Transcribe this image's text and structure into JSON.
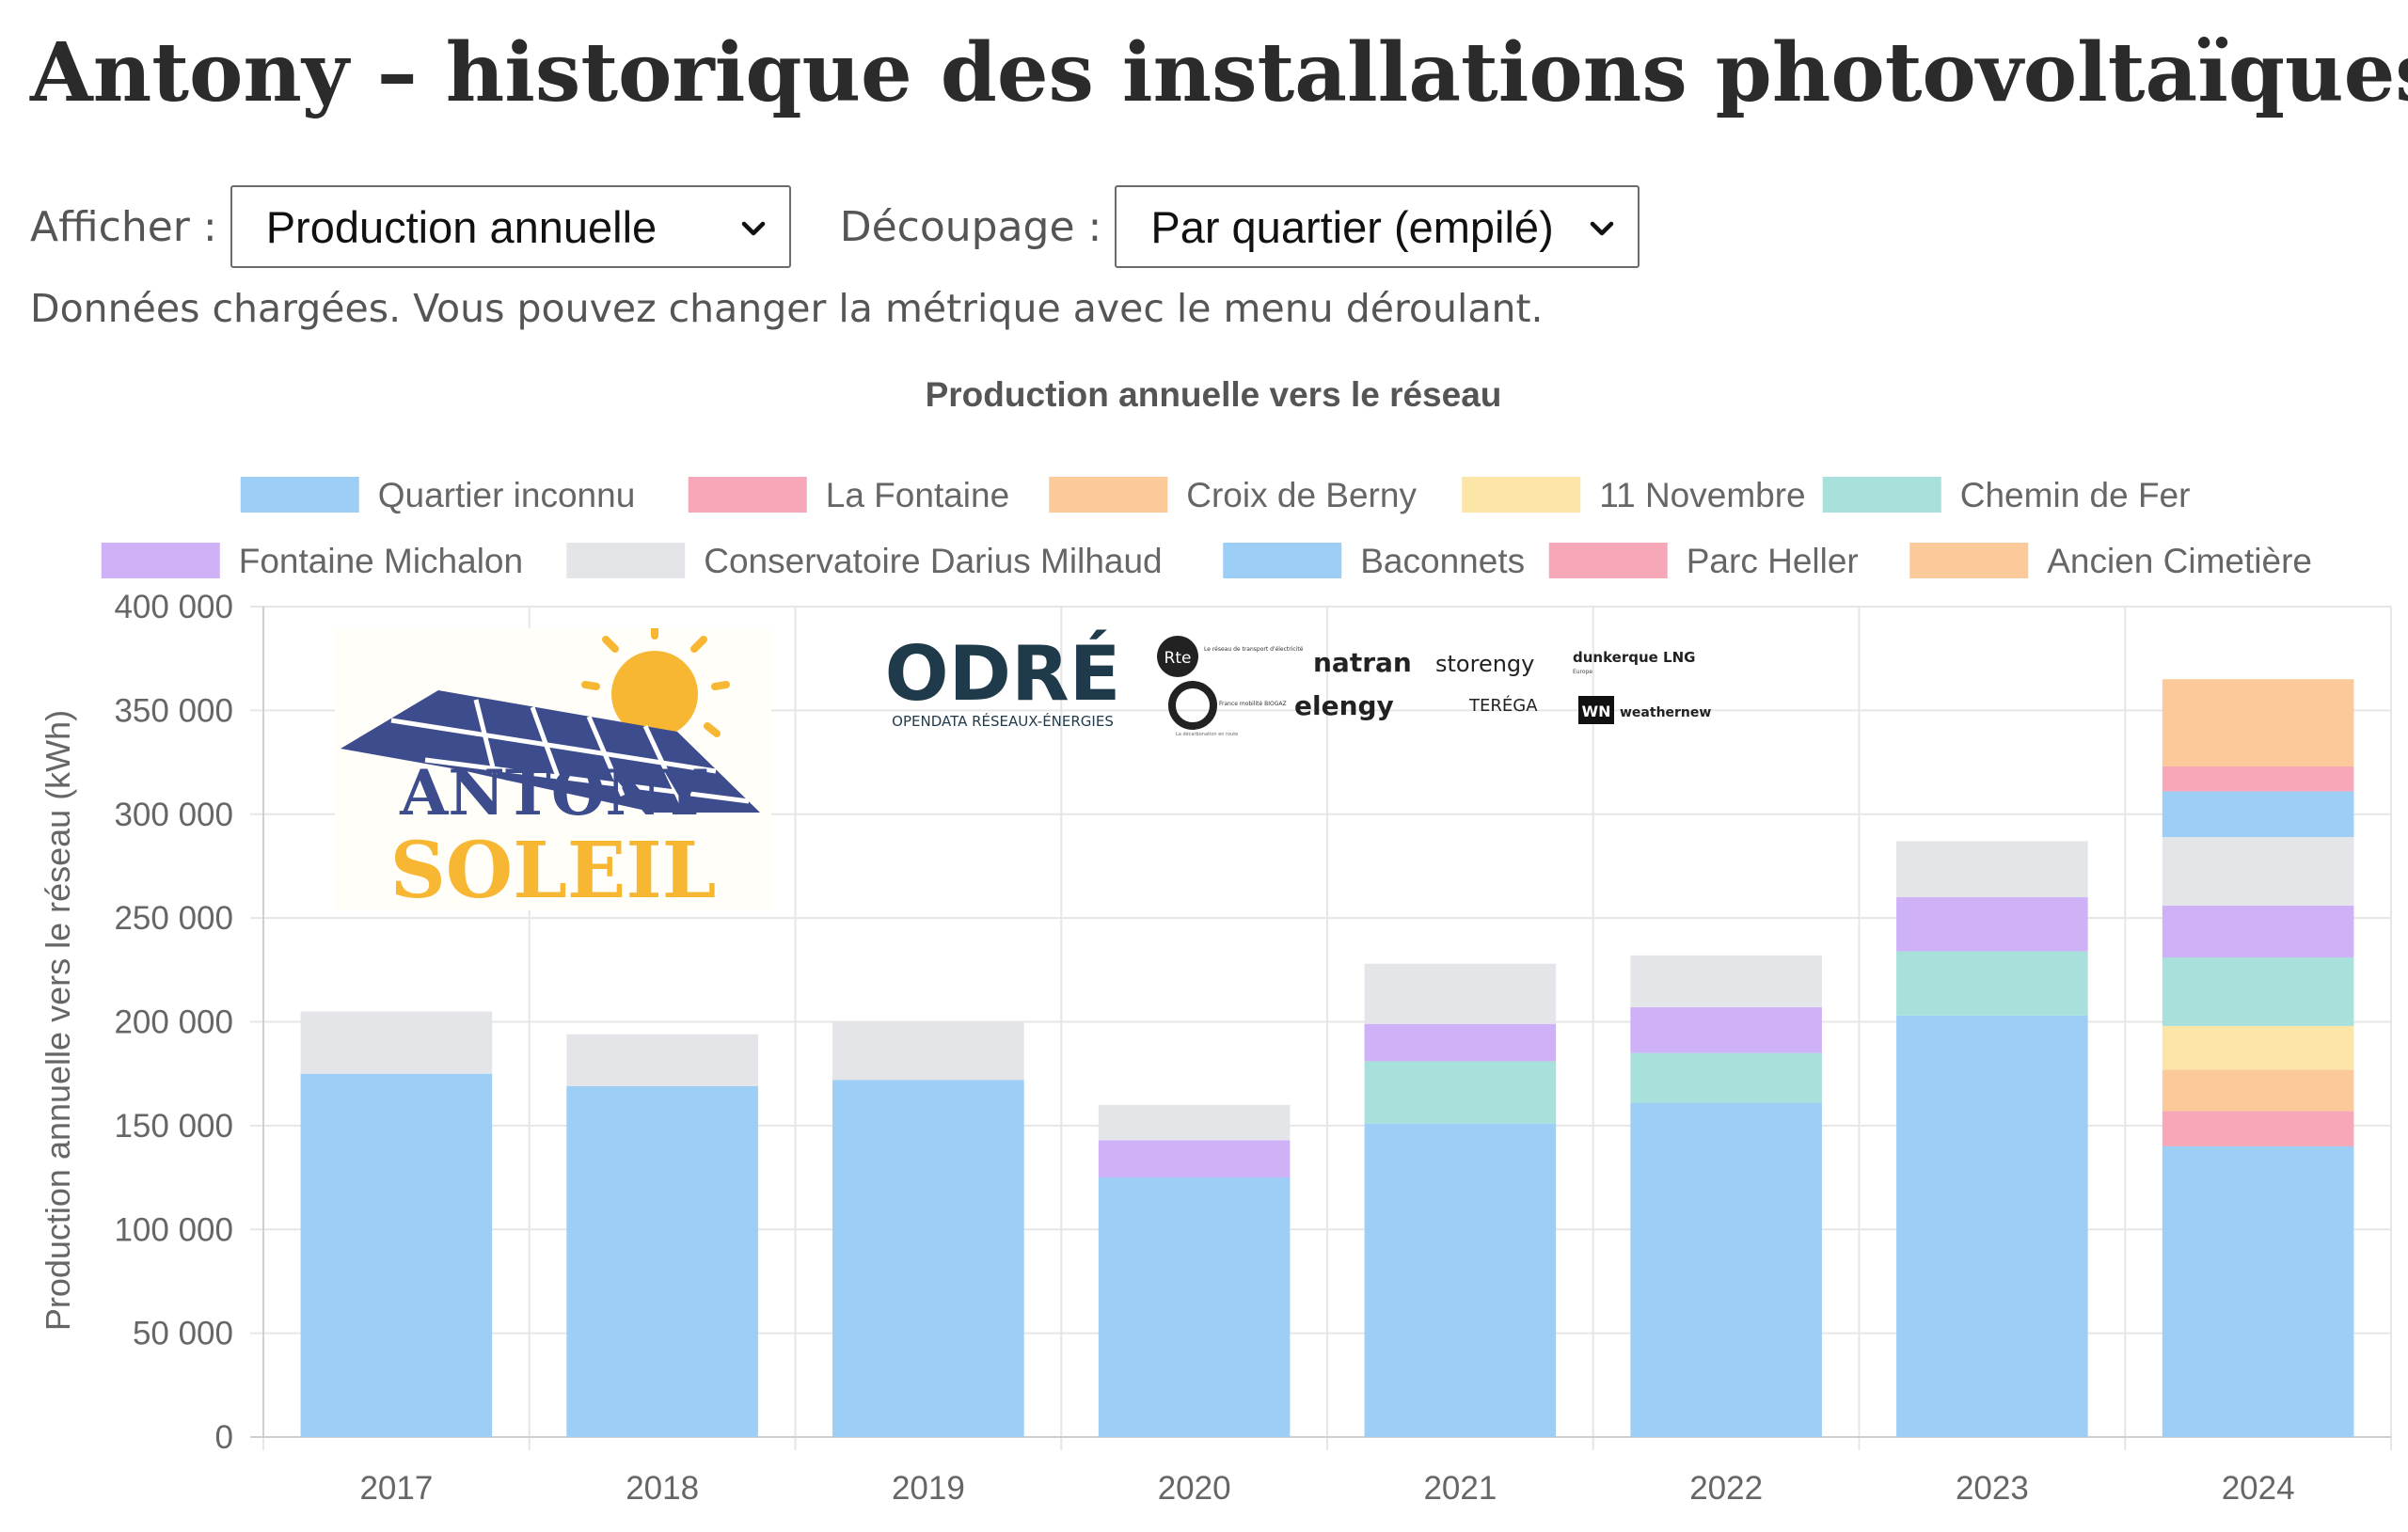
{
  "page": {
    "title": "Antony – historique des installations photovoltaïques"
  },
  "controls": {
    "metric_label": "Afficher :",
    "metric_value": "Production annuelle",
    "split_label": "Découpage :",
    "split_value": "Par quartier (empilé)"
  },
  "status": "Données chargées. Vous pouvez changer la métrique avec le menu déroulant.",
  "logos": {
    "antony_soleil": {
      "line1": "ANTONY",
      "line2": "SOLEIL"
    },
    "odre": {
      "name": "ODRÉ",
      "subtitle": "OPENDATA RÉSEAUX-ÉNERGIES"
    },
    "partners": [
      "Rte",
      "Le réseau de transport d'électricité",
      "France mobilité BIOGAZ",
      "La décarbonation en route",
      "natran",
      "elengy",
      "storengy",
      "TERÉGA",
      "dunkerque LNG",
      "Europe",
      "WN",
      "weathernews"
    ]
  },
  "chart_data": {
    "type": "bar",
    "stacked": true,
    "title": "Production annuelle vers le réseau",
    "ylabel": "Production annuelle vers le réseau (kWh)",
    "xlabel": "",
    "ylim": [
      0,
      400000
    ],
    "yticks": [
      "0",
      "50 000",
      "100 000",
      "150 000",
      "200 000",
      "250 000",
      "300 000",
      "350 000",
      "400 000"
    ],
    "grid": true,
    "legend_position": "top",
    "categories": [
      "2017",
      "2018",
      "2019",
      "2020",
      "2021",
      "2022",
      "2023",
      "2024"
    ],
    "series": [
      {
        "name": "Quartier inconnu",
        "color": "#9dcef5",
        "values": [
          175000,
          169000,
          172000,
          125000,
          151000,
          161000,
          203000,
          140000
        ]
      },
      {
        "name": "La Fontaine",
        "color": "#f7a8b8",
        "values": [
          0,
          0,
          0,
          0,
          0,
          0,
          0,
          17000
        ]
      },
      {
        "name": "Croix de Berny",
        "color": "#fbc99a",
        "values": [
          0,
          0,
          0,
          0,
          0,
          0,
          0,
          20000
        ]
      },
      {
        "name": "11 Novembre",
        "color": "#fce5a6",
        "values": [
          0,
          0,
          0,
          0,
          0,
          0,
          0,
          21000
        ]
      },
      {
        "name": "Chemin de Fer",
        "color": "#a8e0dc",
        "values": [
          0,
          0,
          0,
          0,
          30000,
          24000,
          31000,
          33000
        ]
      },
      {
        "name": "Fontaine Michalon",
        "color": "#cfb1f8",
        "values": [
          0,
          0,
          0,
          18000,
          18000,
          22000,
          26000,
          25000
        ]
      },
      {
        "name": "Conservatoire Darius Milhaud",
        "color": "#e3e5e8",
        "values": [
          30000,
          25000,
          28000,
          17000,
          29000,
          25000,
          27000,
          33000
        ]
      },
      {
        "name": "Baconnets",
        "color": "#9dcef5",
        "values": [
          0,
          0,
          0,
          0,
          0,
          0,
          0,
          22000
        ]
      },
      {
        "name": "Parc Heller",
        "color": "#f7a8b8",
        "values": [
          0,
          0,
          0,
          0,
          0,
          0,
          0,
          12000
        ]
      },
      {
        "name": "Ancien Cimetière",
        "color": "#fbc99a",
        "values": [
          0,
          0,
          0,
          0,
          0,
          0,
          0,
          42000
        ]
      }
    ]
  }
}
